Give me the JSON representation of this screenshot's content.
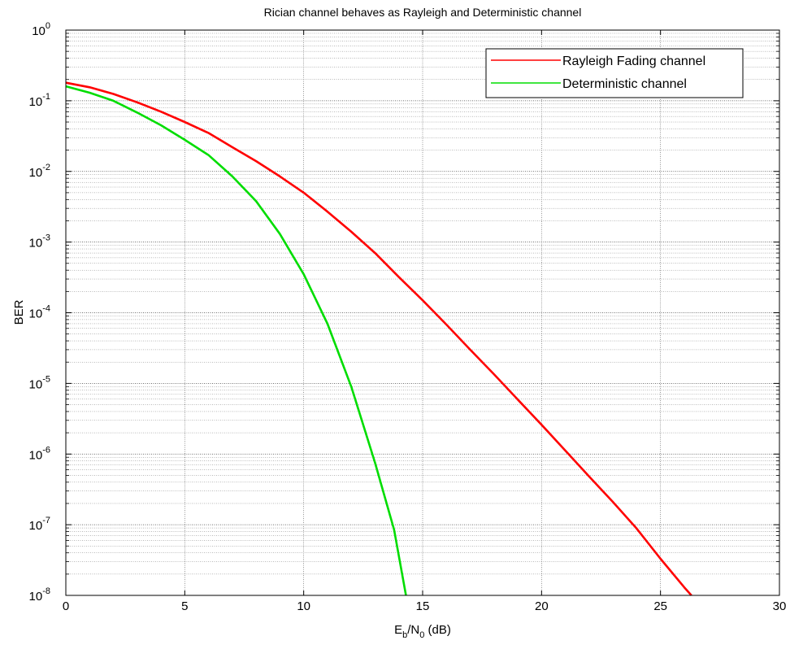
{
  "chart_data": {
    "type": "line",
    "title": "Rician channel behaves as Rayleigh and Deterministic channel",
    "xlabel": {
      "base": "E",
      "sub1": "b",
      "mid": "/N",
      "sub2": "0",
      "suffix": " (dB)"
    },
    "ylabel": "BER",
    "xlim": [
      0,
      30
    ],
    "ylim": [
      1e-08,
      1
    ],
    "yscale": "log",
    "xticks": [
      0,
      5,
      10,
      15,
      20,
      25,
      30
    ],
    "xtick_labels": [
      "0",
      "5",
      "10",
      "15",
      "20",
      "25",
      "30"
    ],
    "yticks": [
      {
        "value": 1e-08,
        "base": "10",
        "exp": "-8"
      },
      {
        "value": 1e-07,
        "base": "10",
        "exp": "-7"
      },
      {
        "value": 1e-06,
        "base": "10",
        "exp": "-6"
      },
      {
        "value": 1e-05,
        "base": "10",
        "exp": "-5"
      },
      {
        "value": 0.0001,
        "base": "10",
        "exp": "-4"
      },
      {
        "value": 0.001,
        "base": "10",
        "exp": "-3"
      },
      {
        "value": 0.01,
        "base": "10",
        "exp": "-2"
      },
      {
        "value": 0.1,
        "base": "10",
        "exp": "-1"
      },
      {
        "value": 1,
        "base": "10",
        "exp": "0"
      }
    ],
    "grid": true,
    "legend_position": "top-right",
    "series": [
      {
        "name": "Rayleigh Fading channel",
        "color": "#ff0000",
        "x": [
          0,
          1,
          2,
          3,
          4,
          5,
          6,
          7,
          8,
          9,
          10,
          11,
          12,
          13,
          14,
          15,
          16,
          17,
          18,
          19,
          20,
          21,
          22,
          23,
          24,
          25,
          26,
          26.3
        ],
        "y": [
          0.18,
          0.155,
          0.125,
          0.095,
          0.07,
          0.05,
          0.035,
          0.022,
          0.014,
          0.0085,
          0.005,
          0.0027,
          0.0014,
          0.0007,
          0.00032,
          0.00015,
          6.8e-05,
          3e-05,
          1.35e-05,
          5.9e-06,
          2.6e-06,
          1.12e-06,
          4.8e-07,
          2.1e-07,
          8.8e-08,
          3.3e-08,
          1.3e-08,
          1e-08
        ]
      },
      {
        "name": "Deterministic channel",
        "color": "#00dd00",
        "x": [
          0,
          1,
          2,
          3,
          4,
          5,
          6,
          7,
          8,
          9,
          10,
          11,
          12,
          13,
          13.8,
          14.3
        ],
        "y": [
          0.16,
          0.13,
          0.1,
          0.068,
          0.045,
          0.028,
          0.017,
          0.0085,
          0.0038,
          0.0013,
          0.00035,
          7e-05,
          9e-06,
          7.5e-07,
          8.5e-08,
          1e-08
        ]
      }
    ]
  }
}
